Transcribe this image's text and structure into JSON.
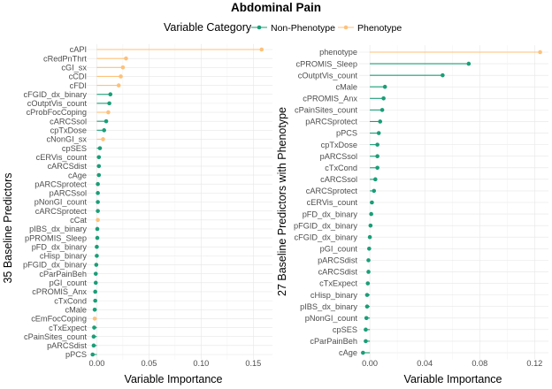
{
  "title": "Abdominal Pain",
  "legend": {
    "title": "Variable Category",
    "entries": [
      {
        "name": "Non-Phenotype",
        "color": "#1a9e76"
      },
      {
        "name": "Phenotype",
        "color": "#fdc17a"
      }
    ]
  },
  "chart_data": [
    {
      "type": "lollipop",
      "orientation": "horizontal",
      "xlabel": "Variable Importance",
      "ylabel": "35 Baseline Predictors",
      "xlim": [
        -0.008,
        0.165
      ],
      "xticks": [
        0.0,
        0.05,
        0.1,
        0.15
      ],
      "xtick_labels": [
        "0.00",
        "0.05",
        "0.10",
        "0.15"
      ],
      "grid": true,
      "legend_position": "top",
      "points": [
        {
          "label": "cAPI",
          "value": 0.158,
          "category": "Phenotype"
        },
        {
          "label": "cRedPnThrt",
          "value": 0.028,
          "category": "Phenotype"
        },
        {
          "label": "cGI_sx",
          "value": 0.025,
          "category": "Phenotype"
        },
        {
          "label": "cCDI",
          "value": 0.023,
          "category": "Phenotype"
        },
        {
          "label": "cFDI",
          "value": 0.021,
          "category": "Phenotype"
        },
        {
          "label": "cFGID_dx_binary",
          "value": 0.013,
          "category": "Non-Phenotype"
        },
        {
          "label": "cOutptVis_count",
          "value": 0.012,
          "category": "Non-Phenotype"
        },
        {
          "label": "cProbFocCoping",
          "value": 0.011,
          "category": "Phenotype"
        },
        {
          "label": "cARCSsol",
          "value": 0.009,
          "category": "Non-Phenotype"
        },
        {
          "label": "cpTxDose",
          "value": 0.007,
          "category": "Non-Phenotype"
        },
        {
          "label": "cNonGI_sx",
          "value": 0.006,
          "category": "Phenotype"
        },
        {
          "label": "cpSES",
          "value": 0.003,
          "category": "Non-Phenotype"
        },
        {
          "label": "cERVis_count",
          "value": 0.002,
          "category": "Non-Phenotype"
        },
        {
          "label": "cARCSdist",
          "value": 0.002,
          "category": "Non-Phenotype"
        },
        {
          "label": "cAge",
          "value": 0.002,
          "category": "Non-Phenotype"
        },
        {
          "label": "pARCSprotect",
          "value": 0.001,
          "category": "Non-Phenotype"
        },
        {
          "label": "pARCSsol",
          "value": 0.001,
          "category": "Non-Phenotype"
        },
        {
          "label": "pNonGI_count",
          "value": 0.001,
          "category": "Non-Phenotype"
        },
        {
          "label": "cARCSprotect",
          "value": 0.001,
          "category": "Non-Phenotype"
        },
        {
          "label": "cCat",
          "value": 0.001,
          "category": "Phenotype"
        },
        {
          "label": "pIBS_dx_binary",
          "value": 0.0005,
          "category": "Non-Phenotype"
        },
        {
          "label": "pPROMIS_Sleep",
          "value": 0.0005,
          "category": "Non-Phenotype"
        },
        {
          "label": "pFD_dx_binary",
          "value": 0.0,
          "category": "Non-Phenotype"
        },
        {
          "label": "cHisp_binary",
          "value": 0.0,
          "category": "Non-Phenotype"
        },
        {
          "label": "pFGID_dx_binary",
          "value": -0.0005,
          "category": "Non-Phenotype"
        },
        {
          "label": "cParPainBeh",
          "value": -0.001,
          "category": "Non-Phenotype"
        },
        {
          "label": "pGI_count",
          "value": -0.001,
          "category": "Non-Phenotype"
        },
        {
          "label": "cPROMIS_Anx",
          "value": -0.0015,
          "category": "Non-Phenotype"
        },
        {
          "label": "cTxCond",
          "value": -0.0015,
          "category": "Non-Phenotype"
        },
        {
          "label": "cMale",
          "value": -0.002,
          "category": "Non-Phenotype"
        },
        {
          "label": "cEmFocCoping",
          "value": -0.002,
          "category": "Phenotype"
        },
        {
          "label": "cTxExpect",
          "value": -0.0025,
          "category": "Non-Phenotype"
        },
        {
          "label": "cPainSites_count",
          "value": -0.003,
          "category": "Non-Phenotype"
        },
        {
          "label": "pARCSdist",
          "value": -0.003,
          "category": "Non-Phenotype"
        },
        {
          "label": "pPCS",
          "value": -0.004,
          "category": "Non-Phenotype"
        }
      ]
    },
    {
      "type": "lollipop",
      "orientation": "horizontal",
      "xlabel": "Variable Importance",
      "ylabel": "27 Baseline Predictors with Phenotype",
      "xlim": [
        -0.0065,
        0.1275
      ],
      "xticks": [
        0.0,
        0.04,
        0.08,
        0.12
      ],
      "xtick_labels": [
        "0.00",
        "0.04",
        "0.08",
        "0.12"
      ],
      "grid": true,
      "legend_position": "top",
      "points": [
        {
          "label": "phenotype",
          "value": 0.124,
          "category": "Phenotype"
        },
        {
          "label": "cPROMIS_Sleep",
          "value": 0.072,
          "category": "Non-Phenotype"
        },
        {
          "label": "cOutptVis_count",
          "value": 0.053,
          "category": "Non-Phenotype"
        },
        {
          "label": "cMale",
          "value": 0.011,
          "category": "Non-Phenotype"
        },
        {
          "label": "cPROMIS_Anx",
          "value": 0.01,
          "category": "Non-Phenotype"
        },
        {
          "label": "cPainSites_count",
          "value": 0.009,
          "category": "Non-Phenotype"
        },
        {
          "label": "pARCSprotect",
          "value": 0.0075,
          "category": "Non-Phenotype"
        },
        {
          "label": "pPCS",
          "value": 0.0065,
          "category": "Non-Phenotype"
        },
        {
          "label": "cpTxDose",
          "value": 0.0055,
          "category": "Non-Phenotype"
        },
        {
          "label": "pARCSsol",
          "value": 0.0055,
          "category": "Non-Phenotype"
        },
        {
          "label": "cTxCond",
          "value": 0.0055,
          "category": "Non-Phenotype"
        },
        {
          "label": "cARCSsol",
          "value": 0.004,
          "category": "Non-Phenotype"
        },
        {
          "label": "cARCSprotect",
          "value": 0.003,
          "category": "Non-Phenotype"
        },
        {
          "label": "cERVis_count",
          "value": 0.0015,
          "category": "Non-Phenotype"
        },
        {
          "label": "pFD_dx_binary",
          "value": 0.001,
          "category": "Non-Phenotype"
        },
        {
          "label": "pFGID_dx_binary",
          "value": 0.0005,
          "category": "Non-Phenotype"
        },
        {
          "label": "cFGID_dx_binary",
          "value": 0.0,
          "category": "Non-Phenotype"
        },
        {
          "label": "pGI_count",
          "value": -0.0005,
          "category": "Non-Phenotype"
        },
        {
          "label": "pARCSdist",
          "value": -0.001,
          "category": "Non-Phenotype"
        },
        {
          "label": "cARCSdist",
          "value": -0.001,
          "category": "Non-Phenotype"
        },
        {
          "label": "cTxExpect",
          "value": -0.0015,
          "category": "Non-Phenotype"
        },
        {
          "label": "cHisp_binary",
          "value": -0.002,
          "category": "Non-Phenotype"
        },
        {
          "label": "pIBS_dx_binary",
          "value": -0.002,
          "category": "Non-Phenotype"
        },
        {
          "label": "pNonGI_count",
          "value": -0.0025,
          "category": "Non-Phenotype"
        },
        {
          "label": "cpSES",
          "value": -0.003,
          "category": "Non-Phenotype"
        },
        {
          "label": "cParPainBeh",
          "value": -0.003,
          "category": "Non-Phenotype"
        },
        {
          "label": "cAge",
          "value": -0.005,
          "category": "Non-Phenotype"
        }
      ]
    }
  ]
}
